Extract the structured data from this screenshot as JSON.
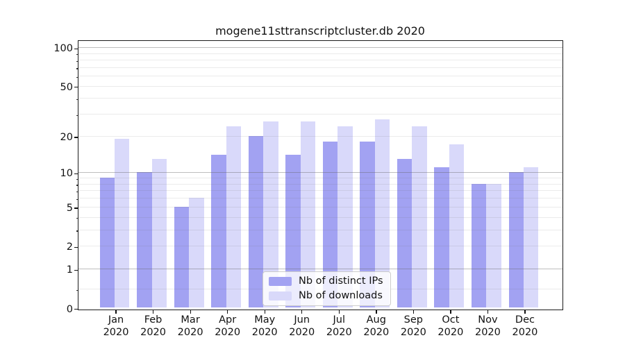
{
  "chart_data": {
    "type": "bar",
    "title": "mogene11sttranscriptcluster.db 2020",
    "categories": [
      "Jan",
      "Feb",
      "Mar",
      "Apr",
      "May",
      "Jun",
      "Jul",
      "Aug",
      "Sep",
      "Oct",
      "Nov",
      "Dec"
    ],
    "x_year_label": "2020",
    "series": [
      {
        "name": "Nb of distinct IPs",
        "color": "#a2a2f2",
        "values": [
          9,
          10,
          5,
          14,
          20,
          14,
          18,
          18,
          13,
          11,
          8,
          10
        ]
      },
      {
        "name": "Nb of downloads",
        "color": "#d9d9fa",
        "values": [
          19,
          13,
          6,
          24,
          26,
          26,
          24,
          27,
          24,
          17,
          8,
          11
        ]
      }
    ],
    "xlabel": "",
    "ylabel": "",
    "yscale": "log1p",
    "ylim": [
      0,
      114
    ],
    "yticks": [
      0,
      1,
      2,
      5,
      10,
      20,
      50,
      100
    ],
    "gridlines_major": [
      1,
      10,
      100
    ],
    "gridlines_minor": [
      0.4,
      2,
      3,
      4,
      5,
      6,
      7,
      8,
      9,
      20,
      30,
      40,
      50,
      60,
      70,
      80,
      90
    ],
    "grid": true,
    "legend_position": "lower center",
    "colors": {
      "spine": "#1a1a1a",
      "grid_major": "#c4c4c4",
      "grid_minor": "#ececec",
      "background": "#ffffff"
    }
  }
}
